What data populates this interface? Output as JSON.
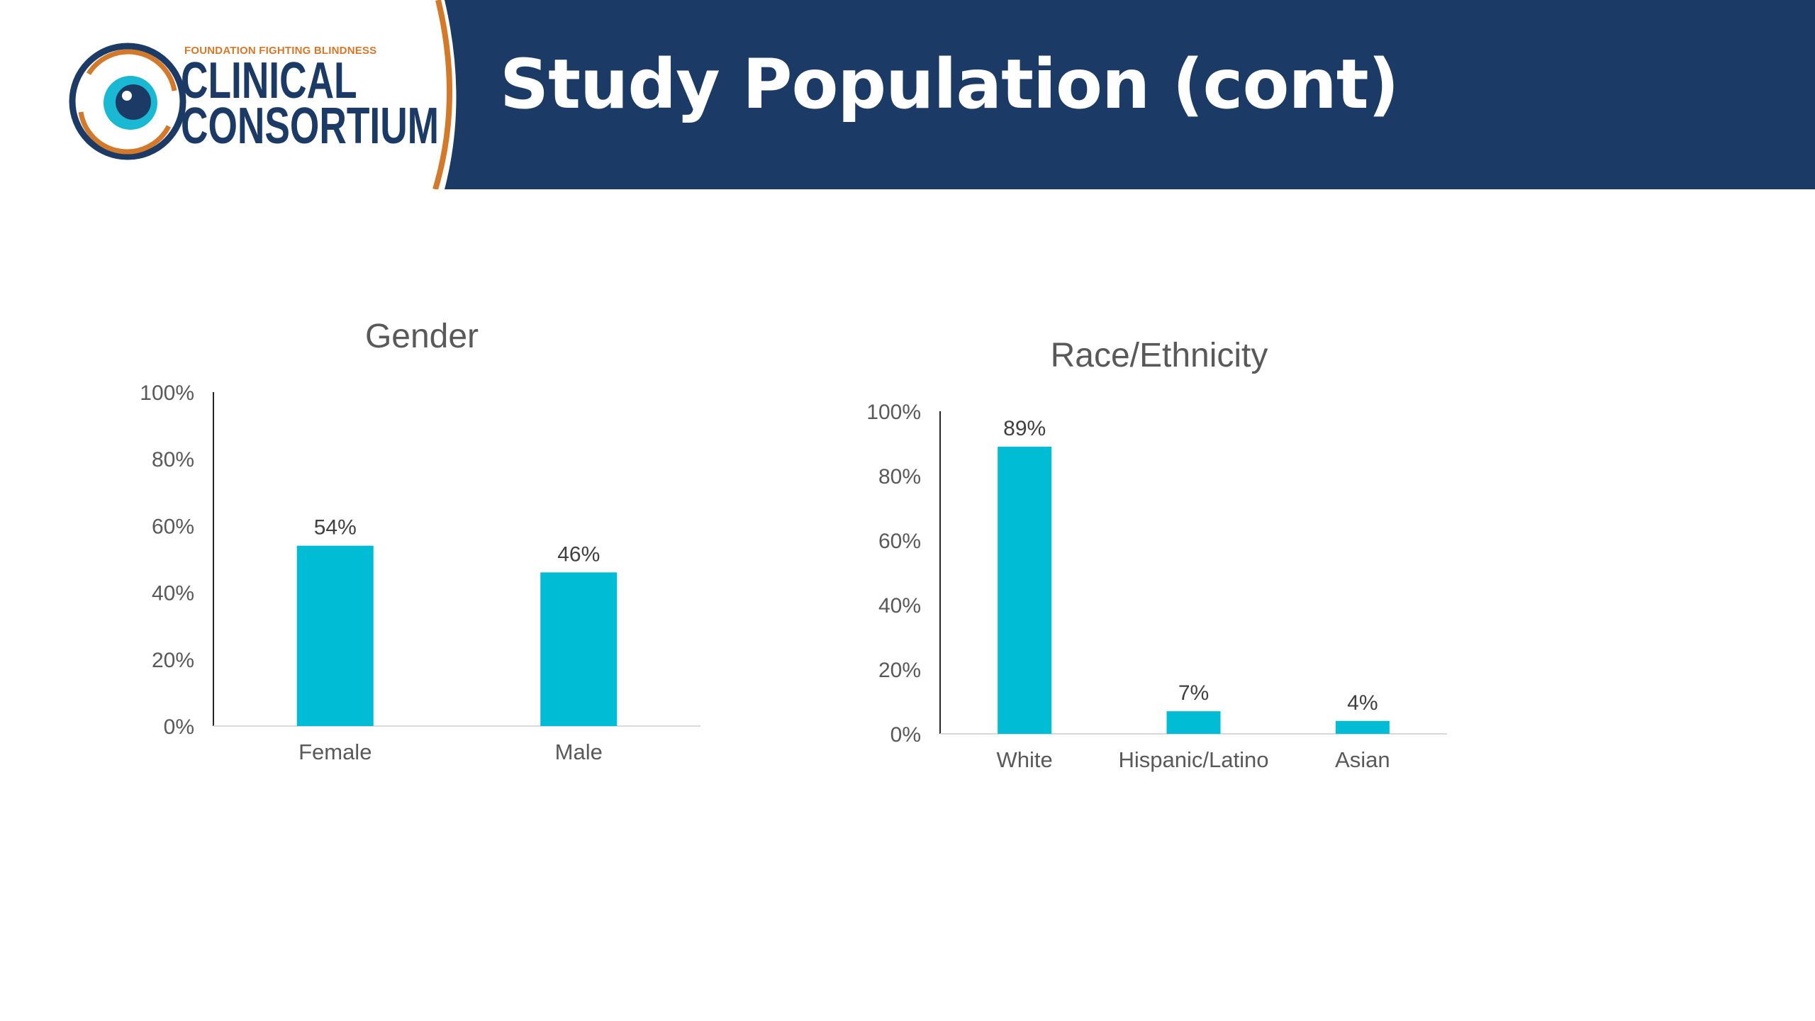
{
  "slide": {
    "title": "Study Population (cont)",
    "logo": {
      "tagline": "FOUNDATION FIGHTING BLINDNESS",
      "line1": "CLINICAL",
      "line2": "CONSORTIUM"
    }
  },
  "colors": {
    "header_bg": "#1b3a66",
    "accent_orange": "#d4782a",
    "bar": "#00bcd4",
    "axis_text": "#595959",
    "title_text": "#595959",
    "label_text": "#404040",
    "axis_line": "#262626",
    "baseline": "#d9d9d9"
  },
  "chart_data": [
    {
      "type": "bar",
      "title": "Gender",
      "categories": [
        "Female",
        "Male"
      ],
      "values": [
        54,
        46
      ],
      "data_labels": [
        "54%",
        "46%"
      ],
      "ylim": [
        0,
        100
      ],
      "yticks": [
        "0%",
        "20%",
        "40%",
        "60%",
        "80%",
        "100%"
      ],
      "xlabel": "",
      "ylabel": "",
      "grid": false,
      "legend": "none"
    },
    {
      "type": "bar",
      "title": "Race/Ethnicity",
      "categories": [
        "White",
        "Hispanic/Latino",
        "Asian"
      ],
      "values": [
        89,
        7,
        4
      ],
      "data_labels": [
        "89%",
        "7%",
        "4%"
      ],
      "ylim": [
        0,
        100
      ],
      "yticks": [
        "0%",
        "20%",
        "40%",
        "60%",
        "80%",
        "100%"
      ],
      "xlabel": "",
      "ylabel": "",
      "grid": false,
      "legend": "none"
    }
  ]
}
